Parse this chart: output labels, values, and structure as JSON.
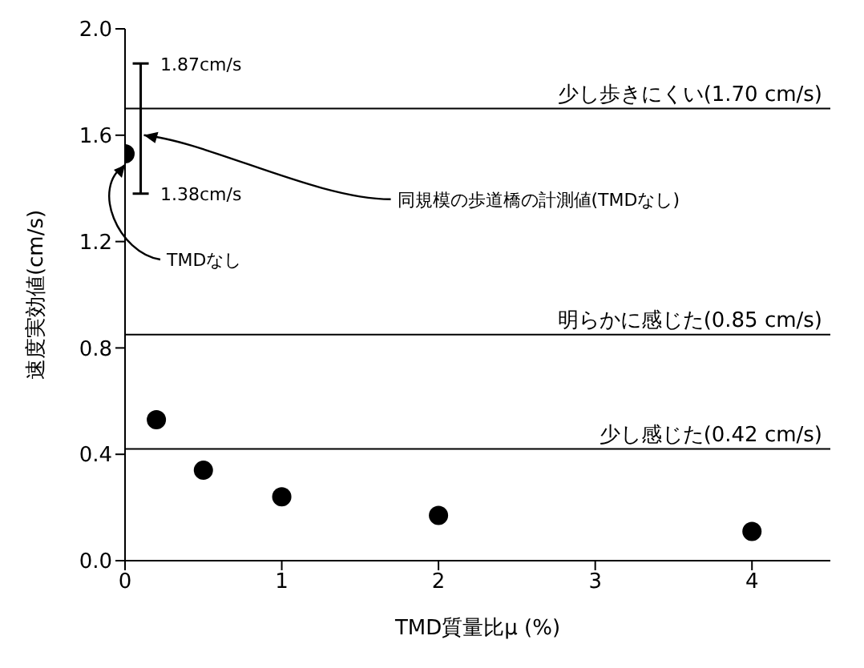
{
  "chart_data": {
    "type": "scatter",
    "xlabel": "TMD質量比μ (%)",
    "ylabel": "速度実効値(cm/s)",
    "xlim": [
      0,
      4.5
    ],
    "xticks": [
      0,
      1,
      2,
      3,
      4
    ],
    "ylim": [
      0,
      2
    ],
    "yticks": [
      {
        "value": 0,
        "label": "0.0"
      },
      {
        "value": 0.4,
        "label": "0.4"
      },
      {
        "value": 0.8,
        "label": "0.8"
      },
      {
        "value": 1.2,
        "label": "1.2"
      },
      {
        "value": 1.6,
        "label": "1.6"
      },
      {
        "value": 2,
        "label": "2.0"
      }
    ],
    "grid": false,
    "marker": "circle",
    "series": [
      {
        "type": "scatter",
        "color": "#000000",
        "x": [
          0,
          0.2,
          0.5,
          1,
          2,
          4
        ],
        "values": [
          1.53,
          0.53,
          0.34,
          0.24,
          0.17,
          0.11
        ]
      },
      {
        "type": "line",
        "color": "#000000",
        "marker": "none",
        "x": [
          0.1,
          0.1
        ],
        "values": [
          1.38,
          1.87
        ]
      }
    ],
    "ref_lines": [
      {
        "axis": "y",
        "value": 1.7,
        "label": "少し歩きにくい(1.70 cm/s)",
        "color": "#000000"
      },
      {
        "axis": "y",
        "value": 0.85,
        "label": "明らかに感じた(0.85 cm/s)",
        "color": "#000000"
      },
      {
        "axis": "y",
        "value": 0.42,
        "label": "少し感じた(0.42 cm/s)",
        "color": "#000000"
      }
    ],
    "annotations": [
      "1.87cm/s",
      "1.38cm/s",
      {
        "text": "同規模の歩道橋の計測値(TMDなし)",
        "x": 0.1,
        "y": 1.6
      },
      {
        "text": "TMDなし",
        "x": 0,
        "y": 1.53
      }
    ]
  }
}
